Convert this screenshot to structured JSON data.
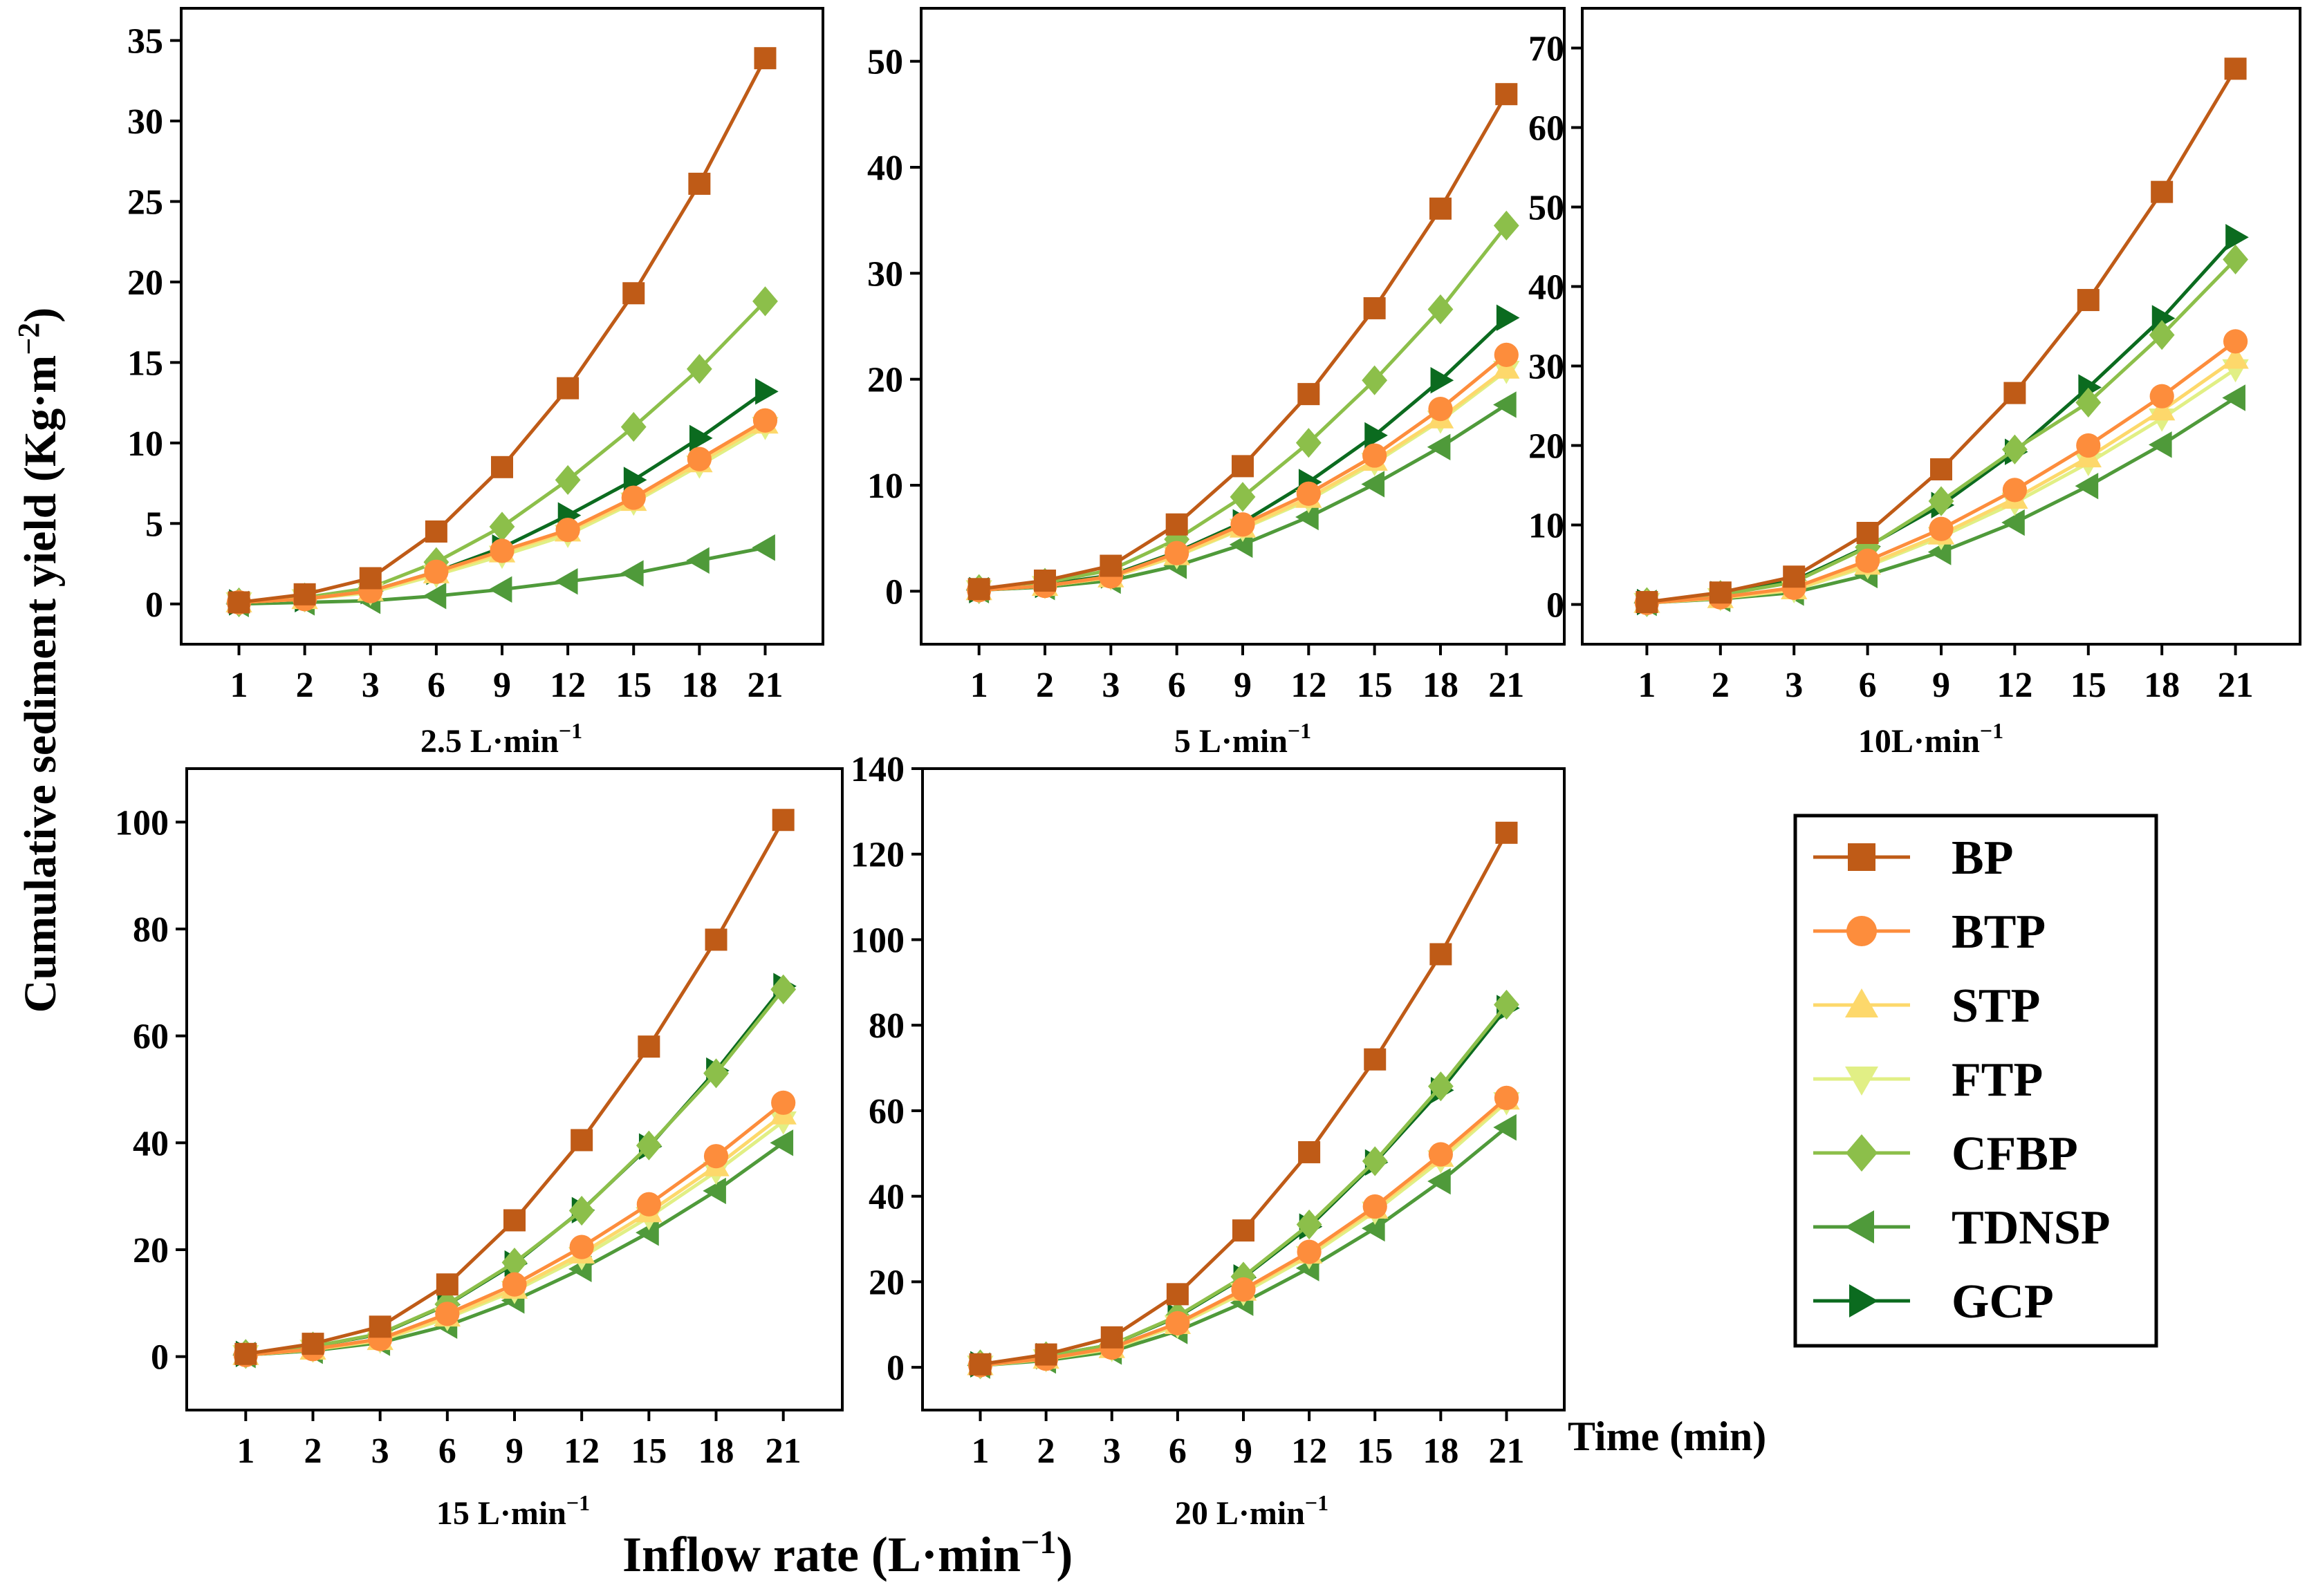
{
  "figure": {
    "ylabel": "Cumulative sediment  yield (Kg·m",
    "ylabel_sup": "−2",
    "ylabel_close": ")",
    "xlabel": "Inflow rate (L·min",
    "xlabel_sup": "−1",
    "xlabel_close": ")",
    "time_label": "Time (min)"
  },
  "legend": [
    {
      "name": "BP",
      "color": "#bf5b17",
      "marker": "square"
    },
    {
      "name": "BTP",
      "color": "#fd8d3c",
      "marker": "circle"
    },
    {
      "name": "STP",
      "color": "#fdd86b",
      "marker": "triangle-up"
    },
    {
      "name": "FTP",
      "color": "#e1ef85",
      "marker": "triangle-down"
    },
    {
      "name": "CFBP",
      "color": "#8cbf4a",
      "marker": "diamond"
    },
    {
      "name": "TDNSP",
      "color": "#4f9a3a",
      "marker": "triangle-left"
    },
    {
      "name": "GCP",
      "color": "#0b6b1f",
      "marker": "triangle-right"
    }
  ],
  "chart_data": [
    {
      "type": "line",
      "panel_label": "2.5 L·min",
      "panel_label_sup": "−1",
      "categories": [
        "1",
        "2",
        "3",
        "6",
        "9",
        "12",
        "15",
        "18",
        "21"
      ],
      "ylim": [
        -2.5,
        37
      ],
      "yticks": [
        0,
        5,
        10,
        15,
        20,
        25,
        30,
        35
      ],
      "series": [
        {
          "name": "BP",
          "values": [
            0.1,
            0.6,
            1.6,
            4.5,
            8.5,
            13.4,
            19.3,
            26.1,
            33.9
          ]
        },
        {
          "name": "BTP",
          "values": [
            0.1,
            0.3,
            0.8,
            2.0,
            3.3,
            4.6,
            6.6,
            9.0,
            11.4
          ]
        },
        {
          "name": "STP",
          "values": [
            0.1,
            0.3,
            0.8,
            1.9,
            3.2,
            4.5,
            6.4,
            8.8,
            11.2
          ]
        },
        {
          "name": "FTP",
          "values": [
            0.1,
            0.3,
            0.7,
            1.8,
            3.0,
            4.3,
            6.3,
            8.6,
            11.0
          ]
        },
        {
          "name": "CFBP",
          "values": [
            0.1,
            0.4,
            1.0,
            2.6,
            4.8,
            7.7,
            11.0,
            14.6,
            18.8
          ]
        },
        {
          "name": "TDNSP",
          "values": [
            0.0,
            0.1,
            0.2,
            0.5,
            0.9,
            1.4,
            1.9,
            2.7,
            3.5
          ]
        },
        {
          "name": "GCP",
          "values": [
            0.1,
            0.3,
            0.8,
            2.0,
            3.5,
            5.5,
            7.7,
            10.3,
            13.2
          ]
        }
      ]
    },
    {
      "type": "line",
      "panel_label": "5 L·min",
      "panel_label_sup": "−1",
      "categories": [
        "1",
        "2",
        "3",
        "6",
        "9",
        "12",
        "15",
        "18",
        "21"
      ],
      "ylim": [
        -5,
        55
      ],
      "yticks": [
        0,
        10,
        20,
        30,
        40,
        50
      ],
      "series": [
        {
          "name": "BP",
          "values": [
            0.2,
            1.0,
            2.4,
            6.3,
            11.8,
            18.6,
            26.7,
            36.1,
            46.9
          ]
        },
        {
          "name": "BTP",
          "values": [
            0.1,
            0.5,
            1.4,
            3.6,
            6.3,
            9.2,
            12.8,
            17.2,
            22.3
          ]
        },
        {
          "name": "STP",
          "values": [
            0.1,
            0.5,
            1.3,
            3.4,
            6.0,
            8.8,
            12.3,
            16.3,
            21.0
          ]
        },
        {
          "name": "FTP",
          "values": [
            0.1,
            0.5,
            1.3,
            3.3,
            5.9,
            8.6,
            12.1,
            16.1,
            20.8
          ]
        },
        {
          "name": "CFBP",
          "values": [
            0.2,
            0.8,
            2.0,
            4.9,
            8.9,
            14.0,
            19.9,
            26.6,
            34.5
          ]
        },
        {
          "name": "TDNSP",
          "values": [
            0.1,
            0.4,
            1.0,
            2.4,
            4.4,
            7.0,
            10.1,
            13.6,
            17.6
          ]
        },
        {
          "name": "GCP",
          "values": [
            0.1,
            0.6,
            1.5,
            3.7,
            6.5,
            10.3,
            14.7,
            19.9,
            25.8
          ]
        }
      ]
    },
    {
      "type": "line",
      "panel_label": "10L·min",
      "panel_label_sup": "−1",
      "categories": [
        "1",
        "2",
        "3",
        "6",
        "9",
        "12",
        "15",
        "18",
        "21"
      ],
      "ylim": [
        -5,
        75
      ],
      "yticks": [
        0,
        10,
        20,
        30,
        40,
        50,
        60,
        70
      ],
      "series": [
        {
          "name": "BP",
          "values": [
            0.3,
            1.5,
            3.5,
            9.0,
            17.0,
            26.6,
            38.3,
            51.9,
            67.4
          ]
        },
        {
          "name": "BTP",
          "values": [
            0.2,
            0.9,
            2.1,
            5.5,
            9.5,
            14.4,
            20.0,
            26.2,
            33.1
          ]
        },
        {
          "name": "STP",
          "values": [
            0.2,
            0.8,
            1.9,
            5.0,
            8.8,
            13.3,
            18.5,
            24.4,
            30.9
          ]
        },
        {
          "name": "FTP",
          "values": [
            0.2,
            0.8,
            1.8,
            4.8,
            8.5,
            12.8,
            17.8,
            23.4,
            29.6
          ]
        },
        {
          "name": "CFBP",
          "values": [
            0.3,
            1.2,
            2.8,
            7.2,
            13.0,
            19.5,
            25.4,
            33.9,
            43.4
          ]
        },
        {
          "name": "TDNSP",
          "values": [
            0.2,
            0.7,
            1.5,
            3.7,
            6.6,
            10.3,
            14.9,
            20.1,
            26.0
          ]
        },
        {
          "name": "GCP",
          "values": [
            0.3,
            1.3,
            3.0,
            7.3,
            12.5,
            19.2,
            27.3,
            36.0,
            46.2
          ]
        }
      ]
    },
    {
      "type": "line",
      "panel_label": "15 L·min",
      "panel_label_sup": "−1",
      "categories": [
        "1",
        "2",
        "3",
        "6",
        "9",
        "12",
        "15",
        "18",
        "21"
      ],
      "ylim": [
        -10,
        110
      ],
      "yticks": [
        0,
        20,
        40,
        60,
        80,
        100
      ],
      "series": [
        {
          "name": "BP",
          "values": [
            0.5,
            2.4,
            5.6,
            13.5,
            25.5,
            40.5,
            58.0,
            78.0,
            100.4
          ]
        },
        {
          "name": "BTP",
          "values": [
            0.3,
            1.4,
            3.3,
            8.0,
            13.5,
            20.5,
            28.5,
            37.5,
            47.5
          ]
        },
        {
          "name": "STP",
          "values": [
            0.3,
            1.3,
            3.1,
            7.5,
            12.7,
            19.3,
            27.0,
            35.6,
            45.3
          ]
        },
        {
          "name": "FTP",
          "values": [
            0.3,
            1.3,
            3.0,
            7.2,
            12.3,
            18.6,
            26.1,
            34.6,
            44.0
          ]
        },
        {
          "name": "CFBP",
          "values": [
            0.5,
            1.9,
            4.3,
            9.8,
            17.6,
            27.3,
            39.5,
            53.0,
            68.7
          ]
        },
        {
          "name": "TDNSP",
          "values": [
            0.3,
            1.1,
            2.6,
            5.8,
            10.5,
            16.4,
            23.2,
            31.0,
            40.0
          ]
        },
        {
          "name": "GCP",
          "values": [
            0.5,
            1.9,
            4.2,
            9.7,
            17.4,
            27.4,
            39.3,
            53.5,
            69.3
          ]
        }
      ]
    },
    {
      "type": "line",
      "panel_label": "20 L·min",
      "panel_label_sup": "−1",
      "categories": [
        "1",
        "2",
        "3",
        "6",
        "9",
        "12",
        "15",
        "18",
        "21"
      ],
      "ylim": [
        -10,
        140
      ],
      "yticks": [
        0,
        20,
        40,
        60,
        80,
        100,
        120,
        140
      ],
      "series": [
        {
          "name": "BP",
          "values": [
            0.7,
            3.0,
            7.0,
            17.1,
            32.0,
            50.3,
            72.0,
            96.6,
            125.0
          ]
        },
        {
          "name": "BTP",
          "values": [
            0.5,
            2.0,
            4.6,
            10.3,
            18.2,
            27.0,
            37.6,
            49.8,
            63.0
          ]
        },
        {
          "name": "STP",
          "values": [
            0.5,
            2.0,
            4.5,
            10.1,
            17.9,
            26.6,
            37.1,
            49.2,
            62.6
          ]
        },
        {
          "name": "FTP",
          "values": [
            0.4,
            1.9,
            4.3,
            9.8,
            17.4,
            26.0,
            36.4,
            48.4,
            62.0
          ]
        },
        {
          "name": "CFBP",
          "values": [
            0.7,
            2.6,
            5.3,
            12.0,
            21.2,
            33.4,
            48.2,
            65.7,
            84.8
          ]
        },
        {
          "name": "TDNSP",
          "values": [
            0.4,
            1.6,
            3.7,
            8.5,
            15.1,
            23.2,
            32.5,
            43.5,
            56.1
          ]
        },
        {
          "name": "GCP",
          "values": [
            0.7,
            2.6,
            5.3,
            11.8,
            21.0,
            32.9,
            47.9,
            64.8,
            84.0
          ]
        }
      ]
    }
  ]
}
